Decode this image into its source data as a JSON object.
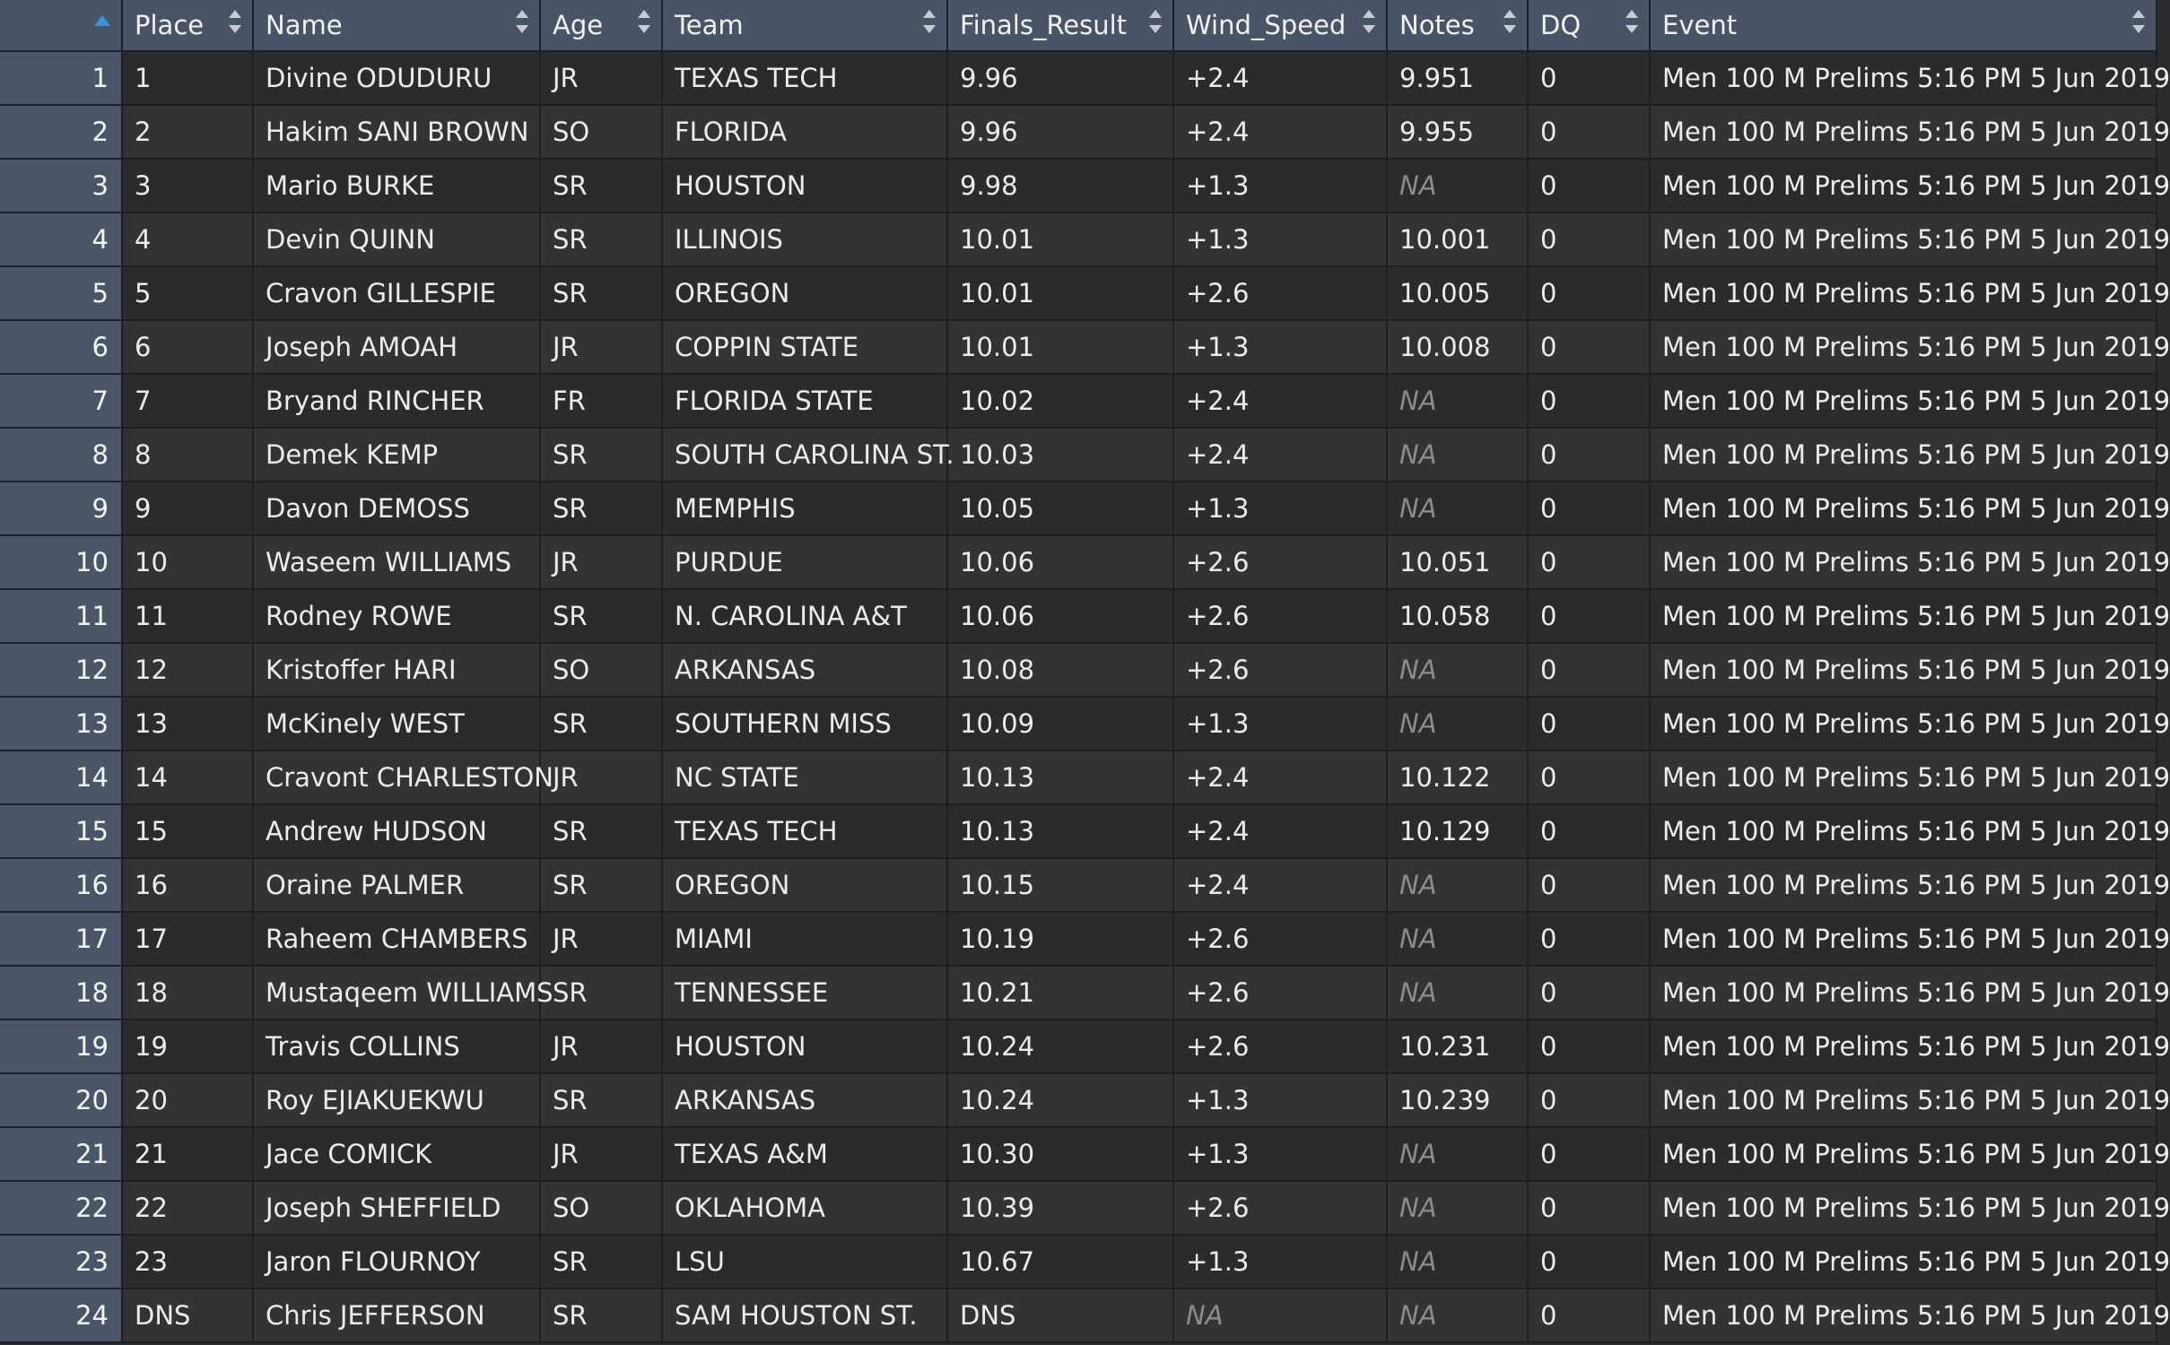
{
  "table": {
    "columns": [
      "Place",
      "Name",
      "Age",
      "Team",
      "Finals_Result",
      "Wind_Speed",
      "Notes",
      "DQ",
      "Event"
    ],
    "rows": [
      {
        "rn": "1",
        "Place": "1",
        "Name": "Divine ODUDURU",
        "Age": "JR",
        "Team": "TEXAS TECH",
        "Finals_Result": "9.96",
        "Wind_Speed": "+2.4",
        "Notes": "9.951",
        "DQ": "0",
        "Event": "Men 100 M Prelims 5:16 PM 5 Jun 2019"
      },
      {
        "rn": "2",
        "Place": "2",
        "Name": "Hakim SANI BROWN",
        "Age": "SO",
        "Team": "FLORIDA",
        "Finals_Result": "9.96",
        "Wind_Speed": "+2.4",
        "Notes": "9.955",
        "DQ": "0",
        "Event": "Men 100 M Prelims 5:16 PM 5 Jun 2019"
      },
      {
        "rn": "3",
        "Place": "3",
        "Name": "Mario BURKE",
        "Age": "SR",
        "Team": "HOUSTON",
        "Finals_Result": "9.98",
        "Wind_Speed": "+1.3",
        "Notes": "NA",
        "DQ": "0",
        "Event": "Men 100 M Prelims 5:16 PM 5 Jun 2019"
      },
      {
        "rn": "4",
        "Place": "4",
        "Name": "Devin QUINN",
        "Age": "SR",
        "Team": "ILLINOIS",
        "Finals_Result": "10.01",
        "Wind_Speed": "+1.3",
        "Notes": "10.001",
        "DQ": "0",
        "Event": "Men 100 M Prelims 5:16 PM 5 Jun 2019"
      },
      {
        "rn": "5",
        "Place": "5",
        "Name": "Cravon GILLESPIE",
        "Age": "SR",
        "Team": "OREGON",
        "Finals_Result": "10.01",
        "Wind_Speed": "+2.6",
        "Notes": "10.005",
        "DQ": "0",
        "Event": "Men 100 M Prelims 5:16 PM 5 Jun 2019"
      },
      {
        "rn": "6",
        "Place": "6",
        "Name": "Joseph AMOAH",
        "Age": "JR",
        "Team": "COPPIN STATE",
        "Finals_Result": "10.01",
        "Wind_Speed": "+1.3",
        "Notes": "10.008",
        "DQ": "0",
        "Event": "Men 100 M Prelims 5:16 PM 5 Jun 2019"
      },
      {
        "rn": "7",
        "Place": "7",
        "Name": "Bryand RINCHER",
        "Age": "FR",
        "Team": "FLORIDA STATE",
        "Finals_Result": "10.02",
        "Wind_Speed": "+2.4",
        "Notes": "NA",
        "DQ": "0",
        "Event": "Men 100 M Prelims 5:16 PM 5 Jun 2019"
      },
      {
        "rn": "8",
        "Place": "8",
        "Name": "Demek KEMP",
        "Age": "SR",
        "Team": "SOUTH CAROLINA ST.",
        "Finals_Result": "10.03",
        "Wind_Speed": "+2.4",
        "Notes": "NA",
        "DQ": "0",
        "Event": "Men 100 M Prelims 5:16 PM 5 Jun 2019"
      },
      {
        "rn": "9",
        "Place": "9",
        "Name": "Davon DEMOSS",
        "Age": "SR",
        "Team": "MEMPHIS",
        "Finals_Result": "10.05",
        "Wind_Speed": "+1.3",
        "Notes": "NA",
        "DQ": "0",
        "Event": "Men 100 M Prelims 5:16 PM 5 Jun 2019"
      },
      {
        "rn": "10",
        "Place": "10",
        "Name": "Waseem WILLIAMS",
        "Age": "JR",
        "Team": "PURDUE",
        "Finals_Result": "10.06",
        "Wind_Speed": "+2.6",
        "Notes": "10.051",
        "DQ": "0",
        "Event": "Men 100 M Prelims 5:16 PM 5 Jun 2019"
      },
      {
        "rn": "11",
        "Place": "11",
        "Name": "Rodney ROWE",
        "Age": "SR",
        "Team": "N. CAROLINA A&T",
        "Finals_Result": "10.06",
        "Wind_Speed": "+2.6",
        "Notes": "10.058",
        "DQ": "0",
        "Event": "Men 100 M Prelims 5:16 PM 5 Jun 2019"
      },
      {
        "rn": "12",
        "Place": "12",
        "Name": "Kristoffer HARI",
        "Age": "SO",
        "Team": "ARKANSAS",
        "Finals_Result": "10.08",
        "Wind_Speed": "+2.6",
        "Notes": "NA",
        "DQ": "0",
        "Event": "Men 100 M Prelims 5:16 PM 5 Jun 2019"
      },
      {
        "rn": "13",
        "Place": "13",
        "Name": "McKinely WEST",
        "Age": "SR",
        "Team": "SOUTHERN MISS",
        "Finals_Result": "10.09",
        "Wind_Speed": "+1.3",
        "Notes": "NA",
        "DQ": "0",
        "Event": "Men 100 M Prelims 5:16 PM 5 Jun 2019"
      },
      {
        "rn": "14",
        "Place": "14",
        "Name": "Cravont CHARLESTON",
        "Age": "JR",
        "Team": "NC STATE",
        "Finals_Result": "10.13",
        "Wind_Speed": "+2.4",
        "Notes": "10.122",
        "DQ": "0",
        "Event": "Men 100 M Prelims 5:16 PM 5 Jun 2019"
      },
      {
        "rn": "15",
        "Place": "15",
        "Name": "Andrew HUDSON",
        "Age": "SR",
        "Team": "TEXAS TECH",
        "Finals_Result": "10.13",
        "Wind_Speed": "+2.4",
        "Notes": "10.129",
        "DQ": "0",
        "Event": "Men 100 M Prelims 5:16 PM 5 Jun 2019"
      },
      {
        "rn": "16",
        "Place": "16",
        "Name": "Oraine PALMER",
        "Age": "SR",
        "Team": "OREGON",
        "Finals_Result": "10.15",
        "Wind_Speed": "+2.4",
        "Notes": "NA",
        "DQ": "0",
        "Event": "Men 100 M Prelims 5:16 PM 5 Jun 2019"
      },
      {
        "rn": "17",
        "Place": "17",
        "Name": "Raheem CHAMBERS",
        "Age": "JR",
        "Team": "MIAMI",
        "Finals_Result": "10.19",
        "Wind_Speed": "+2.6",
        "Notes": "NA",
        "DQ": "0",
        "Event": "Men 100 M Prelims 5:16 PM 5 Jun 2019"
      },
      {
        "rn": "18",
        "Place": "18",
        "Name": "Mustaqeem WILLIAMS",
        "Age": "SR",
        "Team": "TENNESSEE",
        "Finals_Result": "10.21",
        "Wind_Speed": "+2.6",
        "Notes": "NA",
        "DQ": "0",
        "Event": "Men 100 M Prelims 5:16 PM 5 Jun 2019"
      },
      {
        "rn": "19",
        "Place": "19",
        "Name": "Travis COLLINS",
        "Age": "JR",
        "Team": "HOUSTON",
        "Finals_Result": "10.24",
        "Wind_Speed": "+2.6",
        "Notes": "10.231",
        "DQ": "0",
        "Event": "Men 100 M Prelims 5:16 PM 5 Jun 2019"
      },
      {
        "rn": "20",
        "Place": "20",
        "Name": "Roy EJIAKUEKWU",
        "Age": "SR",
        "Team": "ARKANSAS",
        "Finals_Result": "10.24",
        "Wind_Speed": "+1.3",
        "Notes": "10.239",
        "DQ": "0",
        "Event": "Men 100 M Prelims 5:16 PM 5 Jun 2019"
      },
      {
        "rn": "21",
        "Place": "21",
        "Name": "Jace COMICK",
        "Age": "JR",
        "Team": "TEXAS A&M",
        "Finals_Result": "10.30",
        "Wind_Speed": "+1.3",
        "Notes": "NA",
        "DQ": "0",
        "Event": "Men 100 M Prelims 5:16 PM 5 Jun 2019"
      },
      {
        "rn": "22",
        "Place": "22",
        "Name": "Joseph SHEFFIELD",
        "Age": "SO",
        "Team": "OKLAHOMA",
        "Finals_Result": "10.39",
        "Wind_Speed": "+2.6",
        "Notes": "NA",
        "DQ": "0",
        "Event": "Men 100 M Prelims 5:16 PM 5 Jun 2019"
      },
      {
        "rn": "23",
        "Place": "23",
        "Name": "Jaron FLOURNOY",
        "Age": "SR",
        "Team": "LSU",
        "Finals_Result": "10.67",
        "Wind_Speed": "+1.3",
        "Notes": "NA",
        "DQ": "0",
        "Event": "Men 100 M Prelims 5:16 PM 5 Jun 2019"
      },
      {
        "rn": "24",
        "Place": "DNS",
        "Name": "Chris JEFFERSON",
        "Age": "SR",
        "Team": "SAM HOUSTON ST.",
        "Finals_Result": "DNS",
        "Wind_Speed": "NA",
        "Notes": "NA",
        "DQ": "0",
        "Event": "Men 100 M Prelims 5:16 PM 5 Jun 2019"
      }
    ]
  },
  "icons": {
    "sort_asc": "sort-ascending-icon",
    "sort": "sort-icon"
  },
  "colors": {
    "header_bg": "#495567",
    "row_number_bg": "#4a5568",
    "row_odd": "#2b2b2b",
    "row_even": "#333333",
    "sort_active": "#3d8fe0",
    "na_text": "#8c8c8c"
  }
}
